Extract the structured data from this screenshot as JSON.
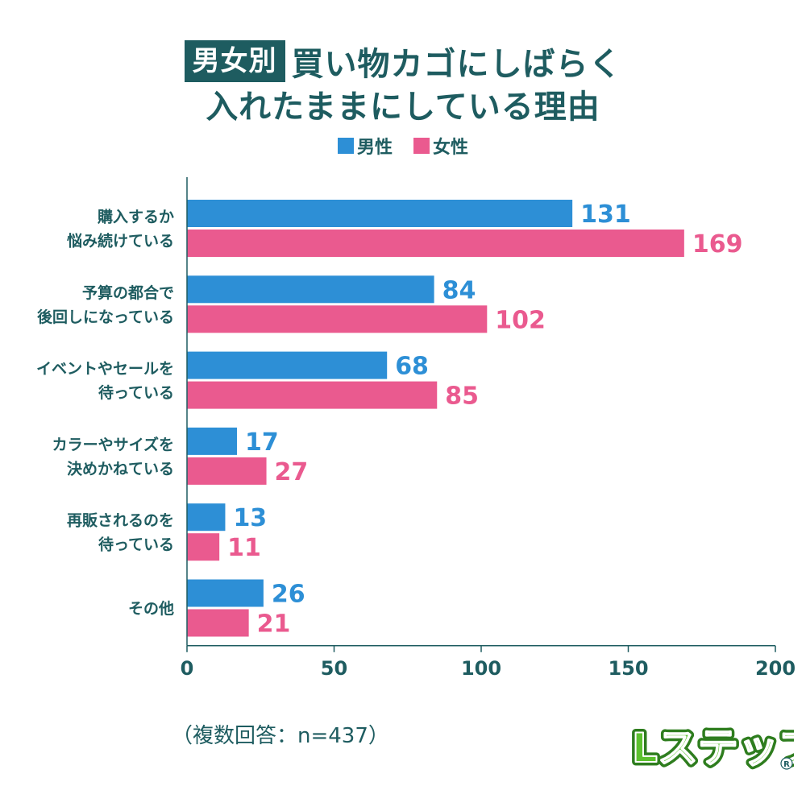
{
  "title": {
    "badge": "男女別",
    "line1": "買い物カゴにしばらく",
    "line2": "入れたままにしている理由"
  },
  "colors": {
    "male": "#2d8fd6",
    "female": "#ea5a8f",
    "text": "#1e5c60",
    "brand_green": "#5cc12e"
  },
  "legend": {
    "male": "男性",
    "female": "女性"
  },
  "chart_data": {
    "type": "bar",
    "orientation": "horizontal",
    "title": "男女別 買い物カゴにしばらく入れたままにしている理由",
    "categories": [
      [
        "購入するか",
        "悩み続けている"
      ],
      [
        "予算の都合で",
        "後回しになっている"
      ],
      [
        "イベントやセールを",
        "待っている"
      ],
      [
        "カラーやサイズを",
        "決めかねている"
      ],
      [
        "再販されるのを",
        "待っている"
      ],
      [
        "その他"
      ]
    ],
    "series": [
      {
        "name": "男性",
        "values": [
          131,
          84,
          68,
          17,
          13,
          26
        ]
      },
      {
        "name": "女性",
        "values": [
          169,
          102,
          85,
          27,
          11,
          21
        ]
      }
    ],
    "xlim": [
      0,
      200
    ],
    "xticks": [
      0,
      50,
      100,
      150,
      200
    ],
    "xlabel": "",
    "ylabel": "",
    "grid": false,
    "legend_position": "top-center"
  },
  "note": "（複数回答：n=437）",
  "brand": "Lステップ"
}
